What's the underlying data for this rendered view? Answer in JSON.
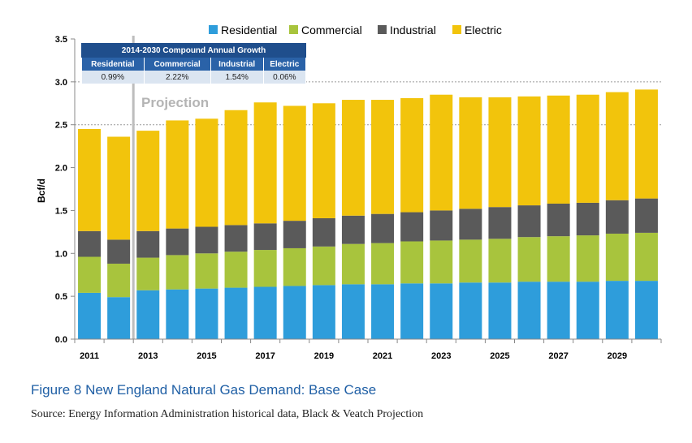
{
  "chart_data": {
    "type": "bar",
    "stacked": true,
    "categories": [
      "2011",
      "2012",
      "2013",
      "2014",
      "2015",
      "2016",
      "2017",
      "2018",
      "2019",
      "2020",
      "2021",
      "2022",
      "2023",
      "2024",
      "2025",
      "2026",
      "2027",
      "2028",
      "2029",
      "2030"
    ],
    "tick_labels": [
      "2011",
      "",
      "2013",
      "",
      "2015",
      "",
      "2017",
      "",
      "2019",
      "",
      "2021",
      "",
      "2023",
      "",
      "2025",
      "",
      "2027",
      "",
      "2029",
      ""
    ],
    "series": [
      {
        "name": "Residential",
        "color": "#2e9ddb",
        "values": [
          0.54,
          0.49,
          0.57,
          0.58,
          0.59,
          0.6,
          0.61,
          0.62,
          0.63,
          0.64,
          0.64,
          0.65,
          0.65,
          0.66,
          0.66,
          0.67,
          0.67,
          0.67,
          0.68,
          0.68
        ]
      },
      {
        "name": "Commercial",
        "color": "#a8c43d",
        "values": [
          0.42,
          0.39,
          0.38,
          0.4,
          0.41,
          0.42,
          0.43,
          0.44,
          0.45,
          0.47,
          0.48,
          0.49,
          0.5,
          0.5,
          0.51,
          0.52,
          0.53,
          0.54,
          0.55,
          0.56
        ]
      },
      {
        "name": "Industrial",
        "color": "#5a5a5a",
        "values": [
          0.3,
          0.28,
          0.31,
          0.31,
          0.31,
          0.31,
          0.31,
          0.32,
          0.33,
          0.33,
          0.34,
          0.34,
          0.35,
          0.36,
          0.37,
          0.37,
          0.38,
          0.38,
          0.39,
          0.4
        ]
      },
      {
        "name": "Electric",
        "color": "#f2c40c",
        "values": [
          1.19,
          1.2,
          1.17,
          1.26,
          1.26,
          1.34,
          1.41,
          1.34,
          1.34,
          1.35,
          1.33,
          1.33,
          1.35,
          1.3,
          1.28,
          1.27,
          1.26,
          1.26,
          1.26,
          1.27
        ]
      }
    ],
    "ylabel": "Bcf/d",
    "ylim": [
      0,
      3.5
    ],
    "yticks": [
      0.0,
      0.5,
      1.0,
      1.5,
      2.0,
      2.5,
      3.0,
      3.5
    ],
    "ytick_labels": [
      "0.0",
      "0.5",
      "1.0",
      "1.5",
      "2.0",
      "2.5",
      "3.0",
      "3.5"
    ],
    "gridlines": [
      3.0,
      2.5
    ],
    "legend_position": "top",
    "annotation": "Projection"
  },
  "cagr_table": {
    "title": "2014-2030 Compound Annual Growth",
    "headers": [
      "Residential",
      "Commercial",
      "Industrial",
      "Electric"
    ],
    "values": [
      "0.99%",
      "2.22%",
      "1.54%",
      "0.06%"
    ]
  },
  "caption": "Figure 8 New England Natural Gas Demand: Base Case",
  "source": "Source: Energy Information Administration historical data, Black & Veatch Projection"
}
